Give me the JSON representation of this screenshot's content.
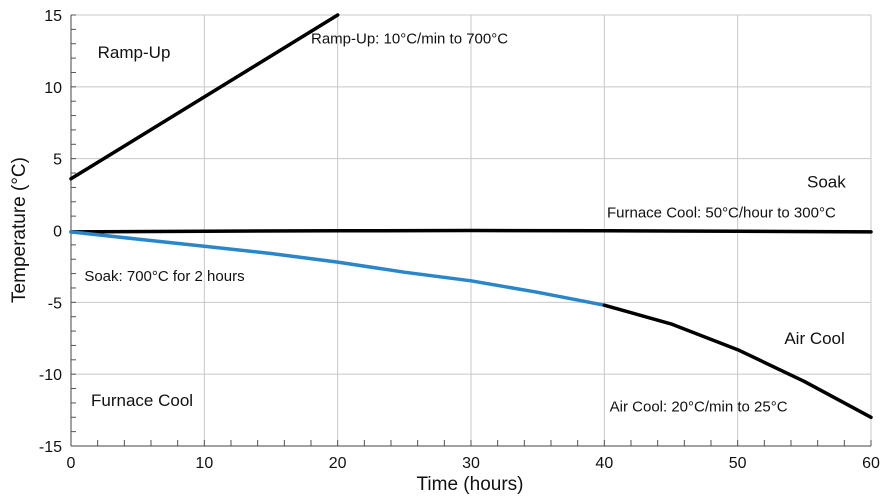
{
  "chart_data": {
    "type": "line",
    "xlabel": "Time (hours)",
    "ylabel": "Temperature (°C)",
    "xlim": [
      0,
      60
    ],
    "ylim": [
      -15,
      15
    ],
    "x_ticks": [
      0,
      10,
      20,
      30,
      40,
      50,
      60
    ],
    "y_ticks": [
      15,
      10,
      5,
      0,
      -5,
      -10,
      -15
    ],
    "grid": true,
    "series": [
      {
        "color": "#000000",
        "points": [
          [
            0,
            3.6
          ],
          [
            20,
            15.0
          ]
        ]
      },
      {
        "color": "#000000",
        "points": [
          [
            0,
            -0.1
          ],
          [
            10,
            -0.05
          ],
          [
            20,
            -0.02
          ],
          [
            30,
            0.0
          ],
          [
            40,
            -0.02
          ],
          [
            50,
            -0.05
          ],
          [
            60,
            -0.1
          ]
        ]
      },
      {
        "color": "#2a86c8",
        "points": [
          [
            0,
            -0.1
          ],
          [
            5,
            -0.6
          ],
          [
            10,
            -1.1
          ],
          [
            15,
            -1.6
          ],
          [
            20,
            -2.2
          ],
          [
            25,
            -2.9
          ],
          [
            30,
            -3.5
          ],
          [
            35,
            -4.3
          ],
          [
            40,
            -5.2
          ]
        ]
      },
      {
        "color": "#000000",
        "points": [
          [
            40,
            -5.2
          ],
          [
            45,
            -6.5
          ],
          [
            50,
            -8.3
          ],
          [
            55,
            -10.5
          ],
          [
            60,
            -13.0
          ]
        ]
      }
    ],
    "annotations": [
      {
        "text": "Ramp-Up",
        "x": 2.0,
        "y": 12.0,
        "size": "large"
      },
      {
        "text": "Ramp-Up: 10°C/min to 700°C",
        "x": 18.0,
        "y": 13.0,
        "size": "small"
      },
      {
        "text": "Soak",
        "x": 55.2,
        "y": 3.0,
        "size": "large"
      },
      {
        "text": "Furnace Cool: 50°C/hour to 300°C",
        "x": 40.2,
        "y": 0.9,
        "size": "small"
      },
      {
        "text": "Soak: 700°C for 2 hours",
        "x": 1.0,
        "y": -3.5,
        "size": "small"
      },
      {
        "text": "Air Cool",
        "x": 53.5,
        "y": -7.9,
        "size": "large"
      },
      {
        "text": "Furnace Cool",
        "x": 1.5,
        "y": -12.2,
        "size": "large"
      },
      {
        "text": "Air Cool: 20°C/min to 25°C",
        "x": 40.4,
        "y": -12.6,
        "size": "small"
      }
    ]
  }
}
